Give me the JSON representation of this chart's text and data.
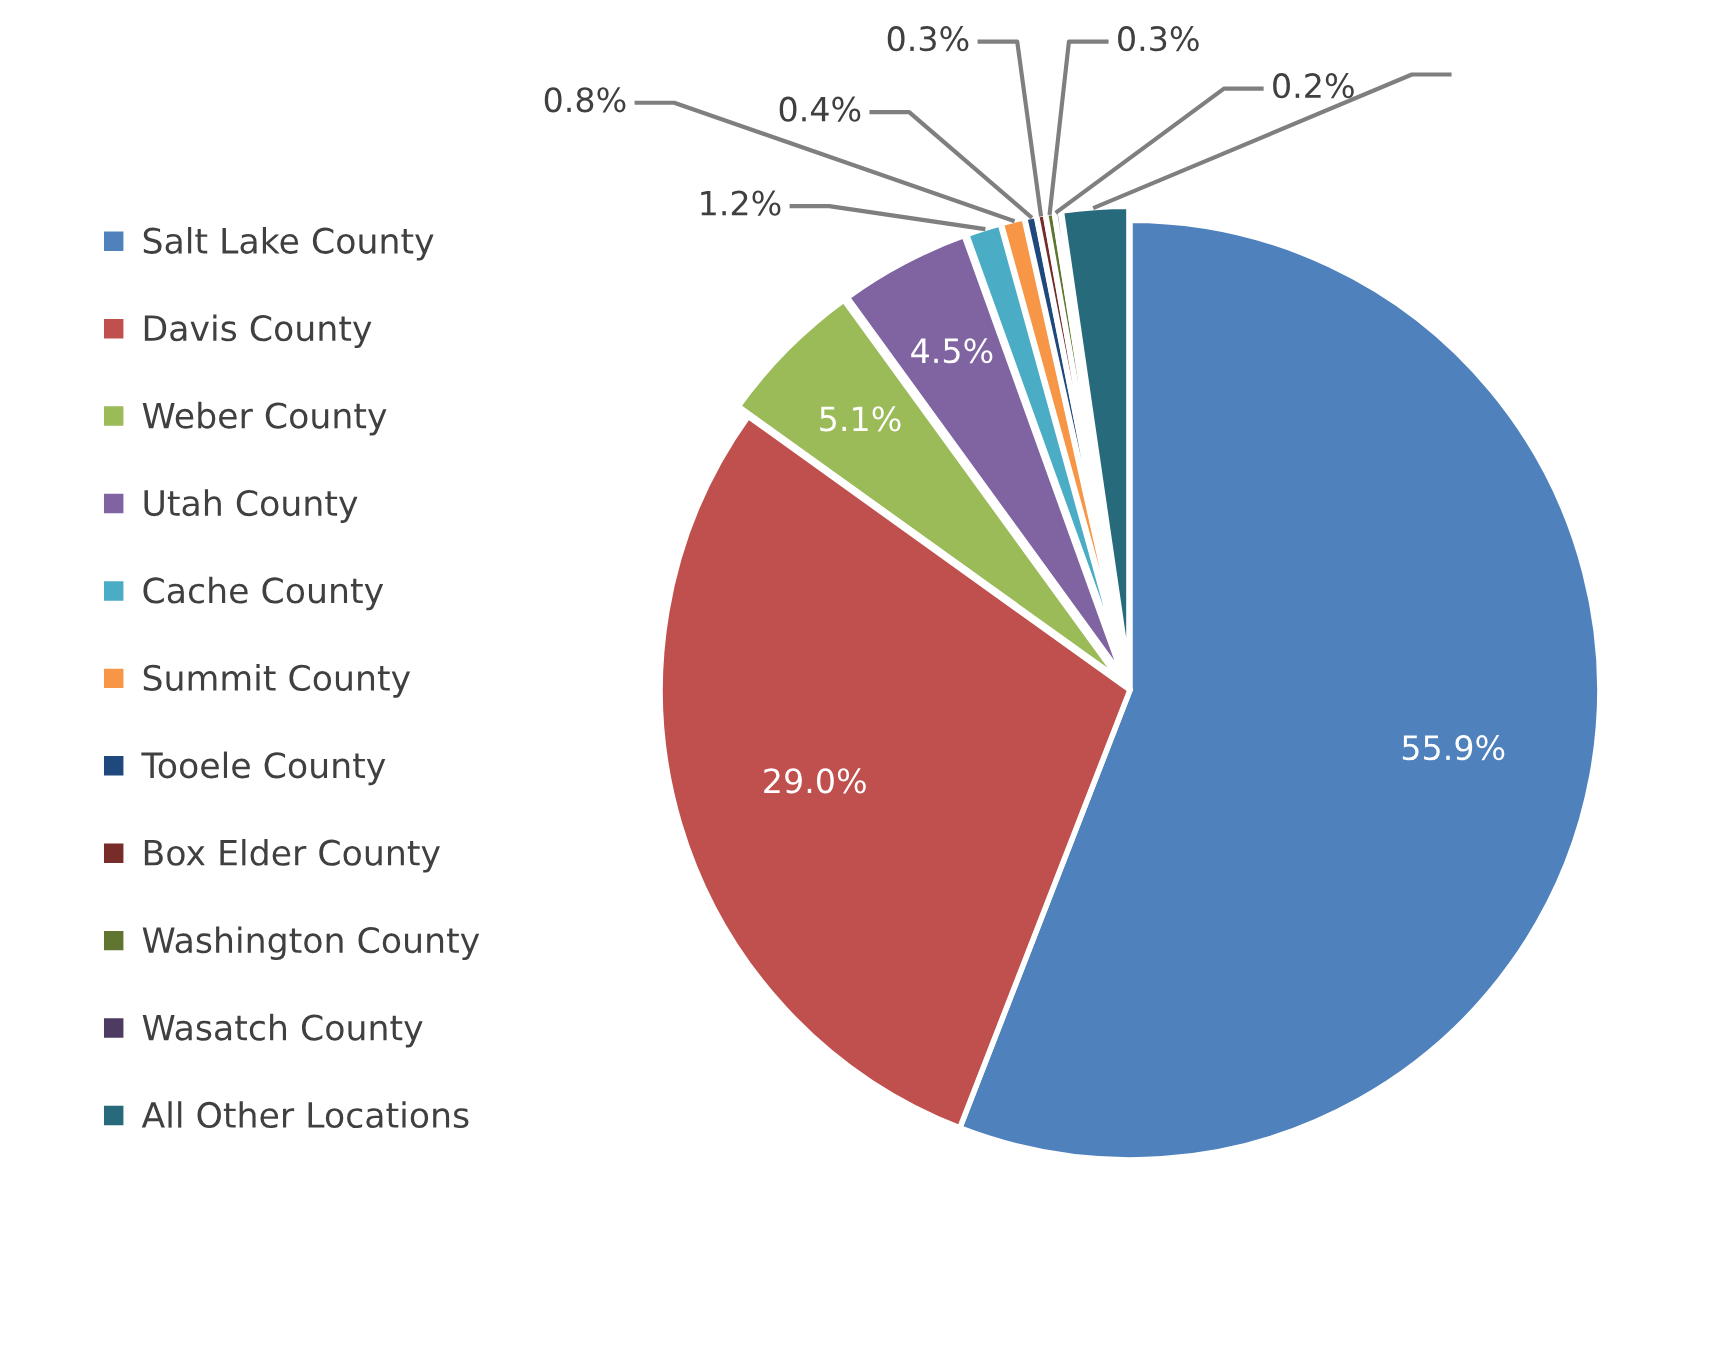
{
  "chart_data": {
    "type": "pie",
    "legend": "left",
    "categories": [
      "Salt Lake County",
      "Davis County",
      "Weber County",
      "Utah County",
      "Cache County",
      "Summit County",
      "Tooele County",
      "Box Elder County",
      "Washington County",
      "Wasatch County",
      "All Other Locations"
    ],
    "values": [
      55.9,
      29.0,
      5.1,
      4.5,
      1.2,
      0.8,
      0.4,
      0.3,
      0.3,
      0.2,
      2.3
    ],
    "value_labels": [
      "55.9%",
      "29.0%",
      "5.1%",
      "4.5%",
      "1.2%",
      "0.8%",
      "0.4%",
      "0.3%",
      "0.3%",
      "0.2%",
      null
    ],
    "colors": [
      "#4f81bd",
      "#c0504d",
      "#9bbb59",
      "#8064a2",
      "#4bacc6",
      "#f79646",
      "#1f497d",
      "#772c2a",
      "#5f7530",
      "#4d3b62",
      "#276a7c"
    ]
  }
}
